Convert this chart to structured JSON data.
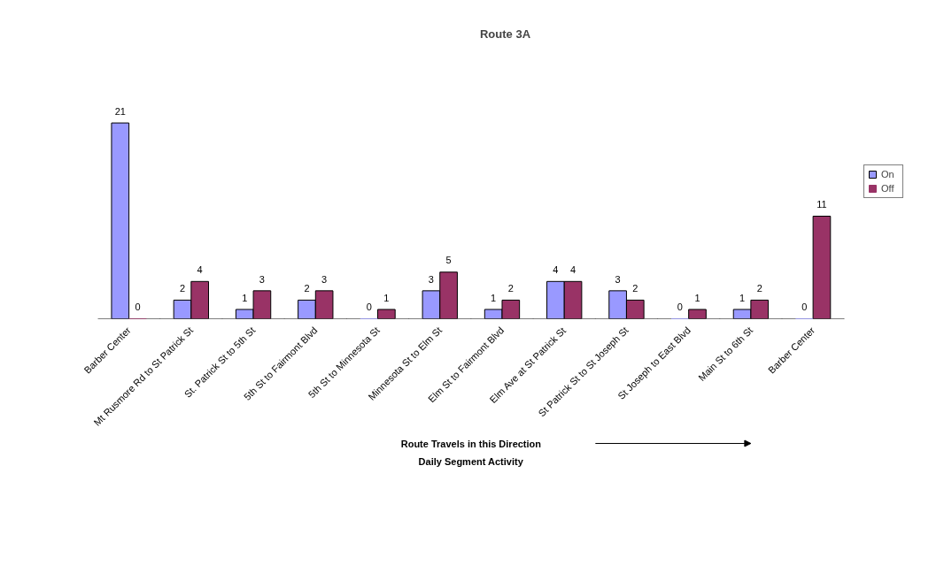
{
  "chart_data": {
    "type": "bar",
    "title": "Route 3A",
    "xlabel": "Route Travels in this Direction",
    "annotations": [
      "Daily Segment Activity"
    ],
    "categories": [
      "Barber Center",
      "Mt Rusmore Rd to St Patrick St",
      "St. Patrick St to 5th St",
      "5th St to Fairmont Blvd",
      "5th St to Minnesota St",
      "Minnesota St to Elm St",
      "Elm St to Fairmont Blvd",
      "Elm Ave at St Patrick St",
      "St Patrick St to St Joseph St",
      "St Joseph to East Blvd",
      "Main St to 6th St",
      "Barber Center"
    ],
    "series": [
      {
        "name": "On",
        "color": "#9999ff",
        "values": [
          21,
          2,
          1,
          2,
          0,
          3,
          1,
          4,
          3,
          0,
          1,
          0
        ]
      },
      {
        "name": "Off",
        "color": "#993366",
        "values": [
          0,
          4,
          3,
          3,
          1,
          5,
          2,
          4,
          2,
          1,
          2,
          11
        ]
      }
    ],
    "data_labels": true,
    "legend": "right",
    "grid": false
  }
}
